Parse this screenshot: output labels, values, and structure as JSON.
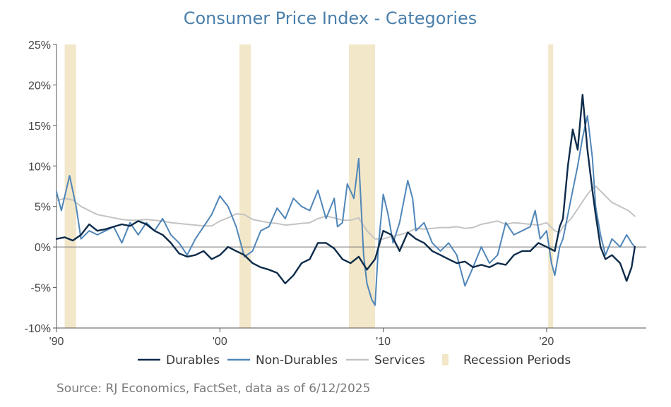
{
  "chart_data": {
    "type": "line",
    "title": "Consumer Price Index - Categories",
    "source": "Source: RJ Economics, FactSet, data as of 6/12/2025",
    "ylim": [
      -10,
      25
    ],
    "xlim": [
      1990.0,
      2026.1
    ],
    "y_ticks": [
      {
        "value": 25,
        "label": "25%"
      },
      {
        "value": 20,
        "label": "20%"
      },
      {
        "value": 15,
        "label": "15%"
      },
      {
        "value": 10,
        "label": "10%"
      },
      {
        "value": 5,
        "label": "5%"
      },
      {
        "value": 0,
        "label": "0%"
      },
      {
        "value": -5,
        "label": "-5%"
      },
      {
        "value": -10,
        "label": "-10%"
      }
    ],
    "x_ticks": [
      {
        "value": 1990,
        "label": "'90"
      },
      {
        "value": 2000,
        "label": "'00"
      },
      {
        "value": 2010,
        "label": "'10"
      },
      {
        "value": 2020,
        "label": "'20"
      }
    ],
    "zero_line": true,
    "legend_position": "bottom",
    "recessions": [
      {
        "start": 1990.5,
        "end": 1991.2
      },
      {
        "start": 2001.2,
        "end": 2001.9
      },
      {
        "start": 2007.9,
        "end": 2009.5
      },
      {
        "start": 2020.1,
        "end": 2020.4
      }
    ],
    "recession_legend": "Recession Periods",
    "recession_color": "#f3e7c9",
    "series": [
      {
        "name": "Durables",
        "color": "#0d2b4a",
        "points": [
          [
            1990.0,
            1.0
          ],
          [
            1990.5,
            1.2
          ],
          [
            1991.0,
            0.8
          ],
          [
            1991.5,
            1.5
          ],
          [
            1992.0,
            2.8
          ],
          [
            1992.5,
            2.0
          ],
          [
            1993.0,
            2.2
          ],
          [
            1993.5,
            2.5
          ],
          [
            1994.0,
            2.8
          ],
          [
            1994.5,
            2.6
          ],
          [
            1995.0,
            3.2
          ],
          [
            1995.5,
            2.8
          ],
          [
            1996.0,
            2.0
          ],
          [
            1996.5,
            1.5
          ],
          [
            1997.0,
            0.5
          ],
          [
            1997.5,
            -0.8
          ],
          [
            1998.0,
            -1.2
          ],
          [
            1998.5,
            -1.0
          ],
          [
            1999.0,
            -0.5
          ],
          [
            1999.5,
            -1.5
          ],
          [
            2000.0,
            -1.0
          ],
          [
            2000.5,
            0.0
          ],
          [
            2001.0,
            -0.5
          ],
          [
            2001.5,
            -1.0
          ],
          [
            2002.0,
            -2.0
          ],
          [
            2002.5,
            -2.5
          ],
          [
            2003.0,
            -2.8
          ],
          [
            2003.5,
            -3.2
          ],
          [
            2004.0,
            -4.5
          ],
          [
            2004.5,
            -3.5
          ],
          [
            2005.0,
            -2.0
          ],
          [
            2005.5,
            -1.5
          ],
          [
            2006.0,
            0.5
          ],
          [
            2006.5,
            0.5
          ],
          [
            2007.0,
            -0.2
          ],
          [
            2007.5,
            -1.5
          ],
          [
            2008.0,
            -2.0
          ],
          [
            2008.5,
            -1.2
          ],
          [
            2009.0,
            -2.8
          ],
          [
            2009.5,
            -1.5
          ],
          [
            2010.0,
            2.0
          ],
          [
            2010.5,
            1.5
          ],
          [
            2011.0,
            -0.5
          ],
          [
            2011.5,
            1.8
          ],
          [
            2012.0,
            1.0
          ],
          [
            2012.5,
            0.5
          ],
          [
            2013.0,
            -0.5
          ],
          [
            2013.5,
            -1.0
          ],
          [
            2014.0,
            -1.5
          ],
          [
            2014.5,
            -2.0
          ],
          [
            2015.0,
            -1.8
          ],
          [
            2015.5,
            -2.5
          ],
          [
            2016.0,
            -2.2
          ],
          [
            2016.5,
            -2.5
          ],
          [
            2017.0,
            -2.0
          ],
          [
            2017.5,
            -2.2
          ],
          [
            2018.0,
            -1.0
          ],
          [
            2018.5,
            -0.5
          ],
          [
            2019.0,
            -0.5
          ],
          [
            2019.5,
            0.5
          ],
          [
            2020.0,
            0.0
          ],
          [
            2020.5,
            -0.5
          ],
          [
            2020.8,
            2.5
          ],
          [
            2021.0,
            3.5
          ],
          [
            2021.3,
            10.0
          ],
          [
            2021.6,
            14.5
          ],
          [
            2021.9,
            12.0
          ],
          [
            2022.2,
            18.8
          ],
          [
            2022.5,
            12.0
          ],
          [
            2022.8,
            7.0
          ],
          [
            2023.0,
            4.0
          ],
          [
            2023.3,
            0.0
          ],
          [
            2023.6,
            -1.5
          ],
          [
            2024.0,
            -1.0
          ],
          [
            2024.5,
            -2.0
          ],
          [
            2024.9,
            -4.2
          ],
          [
            2025.2,
            -2.5
          ],
          [
            2025.4,
            0.0
          ]
        ]
      },
      {
        "name": "Non-Durables",
        "color": "#4f86b8",
        "points": [
          [
            1990.0,
            6.8
          ],
          [
            1990.3,
            4.5
          ],
          [
            1990.8,
            8.8
          ],
          [
            1991.2,
            5.0
          ],
          [
            1991.5,
            1.0
          ],
          [
            1992.0,
            2.0
          ],
          [
            1992.5,
            1.5
          ],
          [
            1993.0,
            2.0
          ],
          [
            1993.5,
            2.5
          ],
          [
            1994.0,
            0.5
          ],
          [
            1994.5,
            3.0
          ],
          [
            1995.0,
            1.5
          ],
          [
            1995.5,
            3.0
          ],
          [
            1996.0,
            2.0
          ],
          [
            1996.5,
            3.5
          ],
          [
            1997.0,
            1.5
          ],
          [
            1997.5,
            0.5
          ],
          [
            1998.0,
            -1.0
          ],
          [
            1998.5,
            1.0
          ],
          [
            1999.0,
            2.5
          ],
          [
            1999.5,
            4.0
          ],
          [
            2000.0,
            6.3
          ],
          [
            2000.5,
            5.0
          ],
          [
            2001.0,
            2.5
          ],
          [
            2001.5,
            -1.2
          ],
          [
            2002.0,
            -0.5
          ],
          [
            2002.5,
            2.0
          ],
          [
            2003.0,
            2.5
          ],
          [
            2003.5,
            4.8
          ],
          [
            2004.0,
            3.5
          ],
          [
            2004.5,
            6.0
          ],
          [
            2005.0,
            5.0
          ],
          [
            2005.5,
            4.5
          ],
          [
            2006.0,
            7.0
          ],
          [
            2006.5,
            3.5
          ],
          [
            2007.0,
            6.0
          ],
          [
            2007.2,
            2.5
          ],
          [
            2007.5,
            3.0
          ],
          [
            2007.8,
            7.8
          ],
          [
            2008.2,
            6.0
          ],
          [
            2008.5,
            10.9
          ],
          [
            2008.8,
            -1.0
          ],
          [
            2009.0,
            -4.5
          ],
          [
            2009.3,
            -6.5
          ],
          [
            2009.5,
            -7.2
          ],
          [
            2009.7,
            0.0
          ],
          [
            2010.0,
            6.5
          ],
          [
            2010.3,
            4.0
          ],
          [
            2010.6,
            0.5
          ],
          [
            2011.0,
            3.0
          ],
          [
            2011.5,
            8.2
          ],
          [
            2011.8,
            6.0
          ],
          [
            2012.0,
            2.0
          ],
          [
            2012.5,
            3.0
          ],
          [
            2013.0,
            0.5
          ],
          [
            2013.5,
            -0.5
          ],
          [
            2014.0,
            0.5
          ],
          [
            2014.5,
            -1.0
          ],
          [
            2015.0,
            -4.8
          ],
          [
            2015.5,
            -2.5
          ],
          [
            2016.0,
            0.0
          ],
          [
            2016.5,
            -2.0
          ],
          [
            2017.0,
            -1.0
          ],
          [
            2017.5,
            3.0
          ],
          [
            2018.0,
            1.5
          ],
          [
            2018.5,
            2.0
          ],
          [
            2019.0,
            2.5
          ],
          [
            2019.3,
            4.5
          ],
          [
            2019.6,
            1.0
          ],
          [
            2020.0,
            2.0
          ],
          [
            2020.3,
            -2.0
          ],
          [
            2020.5,
            -3.5
          ],
          [
            2020.8,
            0.0
          ],
          [
            2021.0,
            1.0
          ],
          [
            2021.3,
            4.0
          ],
          [
            2021.6,
            7.0
          ],
          [
            2021.9,
            10.0
          ],
          [
            2022.2,
            13.5
          ],
          [
            2022.5,
            16.2
          ],
          [
            2022.8,
            11.0
          ],
          [
            2023.0,
            5.0
          ],
          [
            2023.3,
            1.5
          ],
          [
            2023.6,
            -1.0
          ],
          [
            2024.0,
            1.0
          ],
          [
            2024.5,
            0.0
          ],
          [
            2024.9,
            1.5
          ],
          [
            2025.2,
            0.5
          ],
          [
            2025.4,
            0.0
          ]
        ]
      },
      {
        "name": "Services",
        "color": "#c3c3c3",
        "points": [
          [
            1990.0,
            5.7
          ],
          [
            1990.5,
            6.0
          ],
          [
            1991.0,
            5.8
          ],
          [
            1991.5,
            5.0
          ],
          [
            1992.0,
            4.5
          ],
          [
            1992.5,
            4.0
          ],
          [
            1993.0,
            3.8
          ],
          [
            1993.5,
            3.6
          ],
          [
            1994.0,
            3.4
          ],
          [
            1994.5,
            3.3
          ],
          [
            1995.0,
            3.3
          ],
          [
            1995.5,
            3.4
          ],
          [
            1996.0,
            3.3
          ],
          [
            1996.5,
            3.2
          ],
          [
            1997.0,
            3.0
          ],
          [
            1997.5,
            2.9
          ],
          [
            1998.0,
            2.8
          ],
          [
            1998.5,
            2.7
          ],
          [
            1999.0,
            2.6
          ],
          [
            1999.5,
            2.6
          ],
          [
            2000.0,
            3.2
          ],
          [
            2000.5,
            3.6
          ],
          [
            2001.0,
            4.1
          ],
          [
            2001.5,
            4.0
          ],
          [
            2002.0,
            3.4
          ],
          [
            2002.5,
            3.2
          ],
          [
            2003.0,
            3.0
          ],
          [
            2003.5,
            2.9
          ],
          [
            2004.0,
            2.7
          ],
          [
            2004.5,
            2.8
          ],
          [
            2005.0,
            2.9
          ],
          [
            2005.5,
            3.0
          ],
          [
            2006.0,
            3.5
          ],
          [
            2006.5,
            3.8
          ],
          [
            2007.0,
            3.6
          ],
          [
            2007.5,
            3.3
          ],
          [
            2008.0,
            3.3
          ],
          [
            2008.5,
            3.6
          ],
          [
            2009.0,
            2.0
          ],
          [
            2009.5,
            1.0
          ],
          [
            2010.0,
            1.0
          ],
          [
            2010.5,
            1.3
          ],
          [
            2011.0,
            1.5
          ],
          [
            2011.5,
            1.8
          ],
          [
            2012.0,
            2.3
          ],
          [
            2012.5,
            2.2
          ],
          [
            2013.0,
            2.3
          ],
          [
            2013.5,
            2.4
          ],
          [
            2014.0,
            2.4
          ],
          [
            2014.5,
            2.5
          ],
          [
            2015.0,
            2.3
          ],
          [
            2015.5,
            2.4
          ],
          [
            2016.0,
            2.8
          ],
          [
            2016.5,
            3.0
          ],
          [
            2017.0,
            3.2
          ],
          [
            2017.5,
            2.8
          ],
          [
            2018.0,
            3.0
          ],
          [
            2018.5,
            2.9
          ],
          [
            2019.0,
            2.8
          ],
          [
            2019.5,
            2.7
          ],
          [
            2020.0,
            3.0
          ],
          [
            2020.5,
            2.0
          ],
          [
            2020.8,
            1.8
          ],
          [
            2021.0,
            2.5
          ],
          [
            2021.5,
            3.5
          ],
          [
            2022.0,
            5.0
          ],
          [
            2022.5,
            6.5
          ],
          [
            2022.8,
            7.2
          ],
          [
            2023.0,
            7.5
          ],
          [
            2023.5,
            6.5
          ],
          [
            2024.0,
            5.5
          ],
          [
            2024.5,
            5.0
          ],
          [
            2025.0,
            4.5
          ],
          [
            2025.4,
            3.8
          ]
        ]
      }
    ]
  }
}
